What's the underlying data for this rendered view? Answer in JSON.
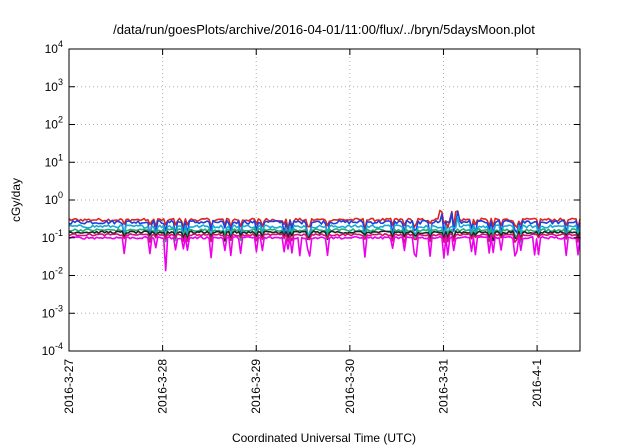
{
  "chart_data": {
    "type": "line",
    "title": "/data/run/goesPlots/archive/2016-04-01/11:00/flux/../bryn/5daysMoon.plot",
    "xlabel": "Coordinated Universal Time (UTC)",
    "ylabel": "cGy/day",
    "y_scale": "log",
    "ylim": [
      0.0001,
      10000
    ],
    "y_ticks": [
      {
        "exp": -4,
        "label_base": "10",
        "label_exp": "-4"
      },
      {
        "exp": -3,
        "label_base": "10",
        "label_exp": "-3"
      },
      {
        "exp": -2,
        "label_base": "10",
        "label_exp": "-2"
      },
      {
        "exp": -1,
        "label_base": "10",
        "label_exp": "-1"
      },
      {
        "exp": 0,
        "label_base": "10",
        "label_exp": "0"
      },
      {
        "exp": 1,
        "label_base": "10",
        "label_exp": "1"
      },
      {
        "exp": 2,
        "label_base": "10",
        "label_exp": "2"
      },
      {
        "exp": 3,
        "label_base": "10",
        "label_exp": "3"
      },
      {
        "exp": 4,
        "label_base": "10",
        "label_exp": "4"
      }
    ],
    "xlim": [
      "2016-03-27T00:00",
      "2016-04-01T11:00"
    ],
    "x_ticks": [
      {
        "value": "2016-03-27T00:00",
        "label": "2016-3-27"
      },
      {
        "value": "2016-03-28T00:00",
        "label": "2016-3-28"
      },
      {
        "value": "2016-03-29T00:00",
        "label": "2016-3-29"
      },
      {
        "value": "2016-03-30T00:00",
        "label": "2016-3-30"
      },
      {
        "value": "2016-03-31T00:00",
        "label": "2016-3-31"
      },
      {
        "value": "2016-04-01T00:00",
        "label": "2016-4-1"
      }
    ],
    "grid": true,
    "legend": "none",
    "series": [
      {
        "color": "#e0241b",
        "base": 0.3,
        "dip": 0.55,
        "noise": 0.18
      },
      {
        "color": "#1c3fe0",
        "base": 0.26,
        "dip": 0.4,
        "noise": 0.22
      },
      {
        "color": "#1aa9d6",
        "base": 0.2,
        "dip": 0.45,
        "noise": 0.18
      },
      {
        "color": "#1fb07a",
        "base": 0.16,
        "dip": 0.5,
        "noise": 0.16
      },
      {
        "color": "#222222",
        "base": 0.14,
        "dip": 0.6,
        "noise": 0.14
      },
      {
        "color": "#d4136e",
        "base": 0.12,
        "dip": 0.6,
        "noise": 0.12
      },
      {
        "color": "#ee00ee",
        "base": 0.1,
        "dip": 0.3,
        "noise": 0.14
      }
    ]
  }
}
